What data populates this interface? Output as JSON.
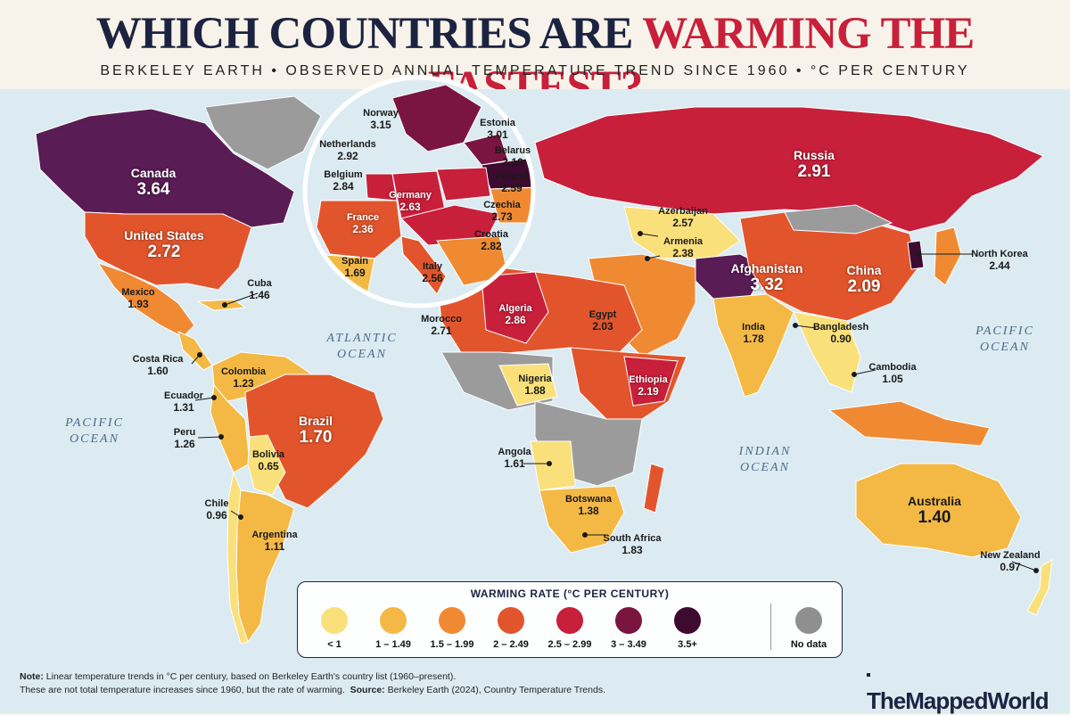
{
  "header": {
    "title_part1": "WHICH COUNTRIES ARE",
    "title_part2": "WARMING THE FASTEST?",
    "subtitle": "BERKELEY EARTH • OBSERVED ANNUAL TEMPERATURE TREND SINCE 1960 • °C PER CENTURY"
  },
  "colors": {
    "ocean": "#dcebf2",
    "no_data": "#8f8f8f",
    "accent_red": "#c8203a",
    "navy": "#1b2340"
  },
  "legend": {
    "title": "WARMING RATE (°C PER CENTURY)",
    "items": [
      {
        "label": "< 1",
        "color": "#f9e07a"
      },
      {
        "label": "1 – 1.49",
        "color": "#f4b945"
      },
      {
        "label": "1.5 – 1.99",
        "color": "#ef8a33"
      },
      {
        "label": "2 – 2.49",
        "color": "#e2552c"
      },
      {
        "label": "2.5 – 2.99",
        "color": "#c81f3b"
      },
      {
        "label": "3 – 3.49",
        "color": "#7a1541"
      },
      {
        "label": "3.5+",
        "color": "#3e0a2f"
      },
      {
        "label": "No data",
        "color": "#8f8f8f"
      }
    ]
  },
  "oceans": {
    "atlantic": "ATLANTIC\nOCEAN",
    "pacific_west": "PACIFIC\nOCEAN",
    "pacific_east": "PACIFIC\nOCEAN",
    "indian": "INDIAN\nOCEAN"
  },
  "countries": [
    {
      "name": "Canada",
      "value": "3.64"
    },
    {
      "name": "United States",
      "value": "2.72"
    },
    {
      "name": "Mexico",
      "value": "1.93"
    },
    {
      "name": "Cuba",
      "value": "1.46"
    },
    {
      "name": "Costa Rica",
      "value": "1.60"
    },
    {
      "name": "Colombia",
      "value": "1.23"
    },
    {
      "name": "Ecuador",
      "value": "1.31"
    },
    {
      "name": "Peru",
      "value": "1.26"
    },
    {
      "name": "Brazil",
      "value": "1.70"
    },
    {
      "name": "Bolivia",
      "value": "0.65"
    },
    {
      "name": "Chile",
      "value": "0.96"
    },
    {
      "name": "Argentina",
      "value": "1.11"
    },
    {
      "name": "Norway",
      "value": "3.15"
    },
    {
      "name": "Estonia",
      "value": "3.01"
    },
    {
      "name": "Belarus",
      "value": "3.16"
    },
    {
      "name": "Netherlands",
      "value": "2.92"
    },
    {
      "name": "Belgium",
      "value": "2.84"
    },
    {
      "name": "Poland",
      "value": "2.59"
    },
    {
      "name": "Germany",
      "value": "2.63"
    },
    {
      "name": "Czechia",
      "value": "2.73"
    },
    {
      "name": "France",
      "value": "2.36"
    },
    {
      "name": "Croatia",
      "value": "2.82"
    },
    {
      "name": "Spain",
      "value": "1.69"
    },
    {
      "name": "Italy",
      "value": "2.56"
    },
    {
      "name": "Russia",
      "value": "2.91"
    },
    {
      "name": "Azerbaijan",
      "value": "2.57"
    },
    {
      "name": "Armenia",
      "value": "2.38"
    },
    {
      "name": "Afghanistan",
      "value": "3.32"
    },
    {
      "name": "China",
      "value": "2.09"
    },
    {
      "name": "North Korea",
      "value": "2.44"
    },
    {
      "name": "India",
      "value": "1.78"
    },
    {
      "name": "Bangladesh",
      "value": "0.90"
    },
    {
      "name": "Cambodia",
      "value": "1.05"
    },
    {
      "name": "Morocco",
      "value": "2.71"
    },
    {
      "name": "Algeria",
      "value": "2.86"
    },
    {
      "name": "Egypt",
      "value": "2.03"
    },
    {
      "name": "Nigeria",
      "value": "1.88"
    },
    {
      "name": "Ethiopia",
      "value": "2.19"
    },
    {
      "name": "Angola",
      "value": "1.61"
    },
    {
      "name": "Botswana",
      "value": "1.38"
    },
    {
      "name": "South Africa",
      "value": "1.83"
    },
    {
      "name": "Australia",
      "value": "1.40"
    },
    {
      "name": "New Zealand",
      "value": "0.97"
    }
  ],
  "note": {
    "label": "Note:",
    "line1": "Linear temperature trends in °C per century, based on Berkeley Earth's country list (1960–present).",
    "line2": "These are not total temperature increases since 1960, but the rate of warming.",
    "source_label": "Source:",
    "source": "Berkeley Earth (2024), Country Temperature Trends."
  },
  "brand": "TheMappedWorld"
}
